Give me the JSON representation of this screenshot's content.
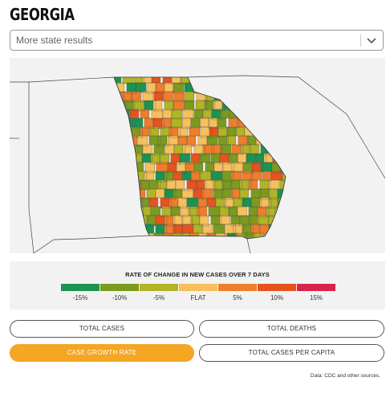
{
  "page_title": "GEORGIA",
  "state_select": {
    "value": "More state results",
    "icon": "chevron-down-icon"
  },
  "legend": {
    "title": "RATE OF CHANGE IN NEW CASES OVER 7 DAYS",
    "items": [
      {
        "label": "-15%",
        "color": "#1a9450"
      },
      {
        "label": "-10%",
        "color": "#7c9a1e"
      },
      {
        "label": "-5%",
        "color": "#b1b424"
      },
      {
        "label": "FLAT",
        "color": "#f6c05c"
      },
      {
        "label": "5%",
        "color": "#ee7e2a"
      },
      {
        "label": "10%",
        "color": "#e5541e"
      },
      {
        "label": "15%",
        "color": "#d6244d"
      }
    ]
  },
  "buttons": {
    "total_cases": "TOTAL CASES",
    "total_deaths": "TOTAL DEATHS",
    "case_growth_rate": "CASE GROWTH RATE",
    "total_cases_per_capita": "TOTAL CASES PER CAPITA",
    "active": "case_growth_rate",
    "active_color": "#f5a623"
  },
  "source_note": "Data: CDC and other sources."
}
